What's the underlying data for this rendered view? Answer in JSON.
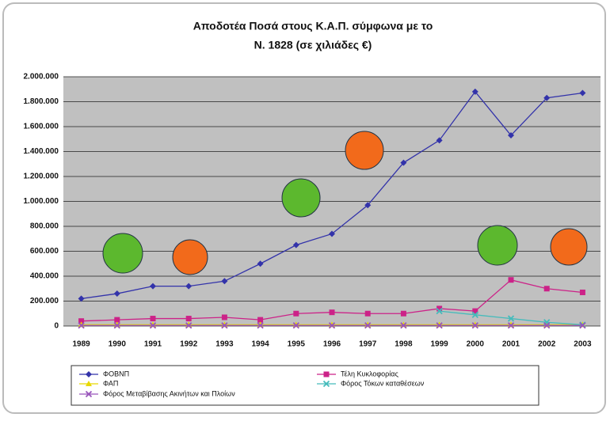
{
  "chart_data": {
    "type": "line",
    "title": [
      "Αποδοτέα Ποσά στους Κ.Α.Π. σύμφωνα με το",
      "Ν. 1828 (σε χιλιάδες €)"
    ],
    "categories": [
      "1989",
      "1990",
      "1991",
      "1992",
      "1993",
      "1994",
      "1995",
      "1996",
      "1997",
      "1998",
      "1999",
      "2000",
      "2001",
      "2002",
      "2003"
    ],
    "ylim": [
      0,
      2000000
    ],
    "yticks": [
      0,
      {
        "value": 200000,
        "label": "200.000"
      },
      {
        "value": 400000,
        "label": "400.000"
      },
      {
        "value": 600000,
        "label": "600.000"
      },
      {
        "value": 800000,
        "label": "800.000"
      },
      {
        "value": 1000000,
        "label": "1.000.000"
      },
      {
        "value": 1200000,
        "label": "1.200.000"
      },
      {
        "value": 1400000,
        "label": "1.400.000"
      },
      {
        "value": 1600000,
        "label": "1.600.000"
      },
      {
        "value": 1800000,
        "label": "1.800.000"
      },
      {
        "value": 2000000,
        "label": "2.000.000"
      }
    ],
    "grid": true,
    "series": [
      {
        "name": "ΦΟΒΝΠ",
        "color": "#3333aa",
        "marker": "diamond",
        "values": [
          220000,
          260000,
          320000,
          320000,
          360000,
          500000,
          650000,
          740000,
          970000,
          1310000,
          1490000,
          1880000,
          1530000,
          1830000,
          1870000
        ]
      },
      {
        "name": "Τέλη Κυκλοφορίας",
        "color": "#cc2288",
        "marker": "square",
        "values": [
          40000,
          50000,
          60000,
          60000,
          70000,
          50000,
          100000,
          110000,
          100000,
          100000,
          140000,
          120000,
          370000,
          300000,
          270000
        ]
      },
      {
        "name": "ΦΑΠ",
        "color": "#e8d800",
        "marker": "triangle",
        "values": [
          10000,
          10000,
          10000,
          10000,
          10000,
          10000,
          10000,
          10000,
          10000,
          10000,
          10000,
          10000,
          10000,
          10000,
          10000
        ]
      },
      {
        "name": "Φόρος Τόκων καταθέσεων",
        "color": "#44bbbb",
        "marker": "x",
        "values": [
          null,
          null,
          null,
          null,
          null,
          null,
          null,
          null,
          null,
          null,
          120000,
          90000,
          60000,
          30000,
          10000
        ]
      },
      {
        "name": "Φόρος Μεταβίβασης Ακινήτων και Πλοίων",
        "color": "#9955bb",
        "marker": "x",
        "values": [
          5000,
          5000,
          5000,
          5000,
          5000,
          5000,
          5000,
          5000,
          5000,
          5000,
          5000,
          5000,
          5000,
          5000,
          5000
        ]
      }
    ]
  }
}
